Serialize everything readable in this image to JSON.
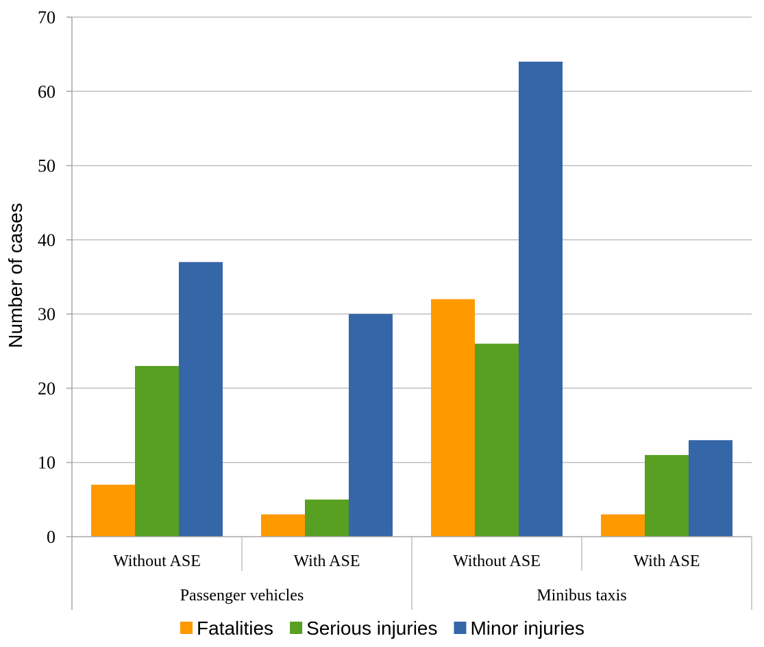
{
  "chart_data": {
    "type": "bar",
    "title": "",
    "ylabel": "Number of cases",
    "xlabel": "",
    "ylim": [
      0,
      70
    ],
    "yticks": [
      0,
      10,
      20,
      30,
      40,
      50,
      60,
      70
    ],
    "grid": true,
    "legend_position": "bottom",
    "groups": [
      {
        "label": "Passenger vehicles",
        "categories": [
          "Without ASE",
          "With ASE"
        ]
      },
      {
        "label": "Minibus taxis",
        "categories": [
          "Without ASE",
          "With ASE"
        ]
      }
    ],
    "series": [
      {
        "name": "Fatalities",
        "color": "#FF9900",
        "values": [
          7,
          3,
          32,
          3
        ]
      },
      {
        "name": "Serious injuries",
        "color": "#58A021",
        "values": [
          23,
          5,
          26,
          11
        ]
      },
      {
        "name": "Minor injuries",
        "color": "#3566A8",
        "values": [
          37,
          30,
          64,
          13
        ]
      }
    ]
  }
}
